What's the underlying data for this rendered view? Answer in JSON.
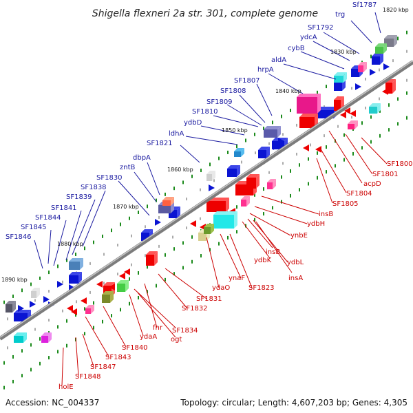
{
  "title": "Shigella flexneri 2a str. 301, complete genome",
  "footer": {
    "accession": "Accession: NC_004337",
    "stats": "Topology: circular; Length: 4,607,203 bp; Genes: 4,305"
  },
  "colors": {
    "top_labels": "#1a1aa0",
    "bottom_labels": "#cc0000",
    "genome_line": "#808080",
    "dots": "#1a8a1a"
  },
  "ticks": [
    "1820 kbp",
    "1830 kbp",
    "1840 kbp",
    "1850 kbp",
    "1860 kbp",
    "1870 kbp",
    "1880 kbp",
    "1890 kbp"
  ],
  "labels_top": [
    "Sf1787",
    "trg",
    "SF1792",
    "ydcA",
    "cybB",
    "aldA",
    "hrpA",
    "SF1807",
    "SF1808",
    "SF1809",
    "SF1810",
    "ydbD",
    "ldhA",
    "SF1821",
    "dbpA",
    "zntB",
    "SF1830",
    "SF1838",
    "SF1839",
    "SF1841",
    "SF1844",
    "SF1845",
    "SF1846"
  ],
  "labels_bottom": [
    "SF1800",
    "SF1801",
    "acpD",
    "SF1804",
    "SF1805",
    "insB",
    "ydbH",
    "ynbE",
    "insB",
    "ydbL",
    "ydbK",
    "insA",
    "ynaF",
    "SF1823",
    "ydaO",
    "SF1831",
    "SF1832",
    "SF1834",
    "fnr",
    "ogt",
    "ydaA",
    "SF1840",
    "SF1843",
    "SF1847",
    "SF1848",
    "holE"
  ]
}
